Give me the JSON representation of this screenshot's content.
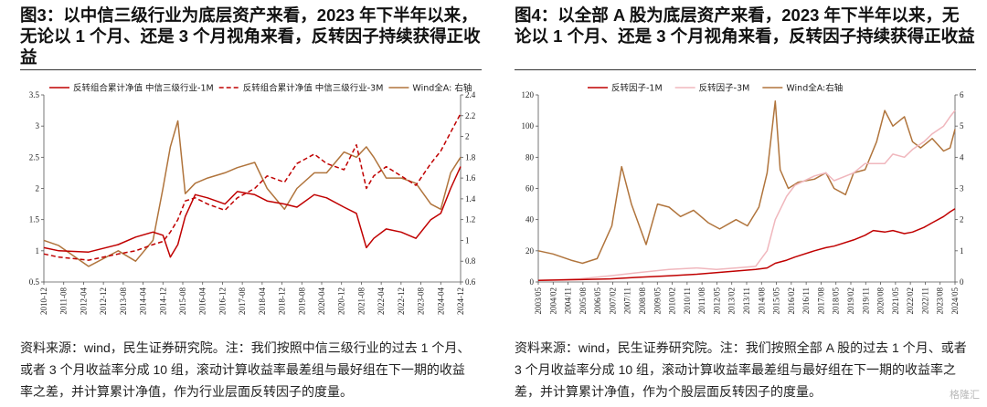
{
  "watermark": "格隆汇",
  "colors": {
    "series_1m": "#c00000",
    "series_3m": "#c00000",
    "series_3m_light": "#f0b7bd",
    "wind": "#b0743c"
  },
  "panels": [
    {
      "title": "图3：以中信三级行业为底层资产来看，2023 年下半年以来，无论以 1 个月、还是 3 个月视角来看，反转因子持续获得正收益",
      "source": "资料来源：wind，民生证券研究院。注：我们按照中信三级行业的过去 1 个月、或者 3 个月收益率分成 10 组，滚动计算收益率最差组与最好组在下一期的收益率之差，并计算累计净值，作为行业层面反转因子的度量。"
    },
    {
      "title": "图4：以全部 A 股为底层资产来看，2023 年下半年以来，无论以 1 个月、还是 3 个月视角来看，反转因子持续获得正收益",
      "source": "资料来源：wind，民生证券研究院。注：我们按照全部 A 股的过去 1 个月、或者 3 个月收益率分成 10 组，滚动计算收益率最差组与最好组在下一期的收益率之差，并计算累计净值，作为个股层面反转因子的度量。"
    }
  ],
  "chart_data": [
    {
      "type": "line",
      "legend_position": "top",
      "grid": false,
      "x_start": "2010-12",
      "x_end": "2024-12",
      "x_ticks": [
        "2010-12",
        "2011-08",
        "2012-04",
        "2012-12",
        "2013-08",
        "2014-04",
        "2014-12",
        "2015-08",
        "2016-04",
        "2016-12",
        "2017-08",
        "2018-04",
        "2018-12",
        "2019-08",
        "2020-04",
        "2020-12",
        "2021-08",
        "2022-04",
        "2022-12",
        "2023-08",
        "2024-04",
        "2024-12"
      ],
      "y_left": {
        "range": [
          0.5,
          3.5
        ],
        "ticks": [
          "0.5",
          "1",
          "1.5",
          "2",
          "2.5",
          "3",
          "3.5"
        ]
      },
      "y_right": {
        "range": [
          0.6,
          2.4
        ],
        "ticks": [
          "0.6",
          "0.8",
          "1",
          "1.2",
          "1.4",
          "1.6",
          "1.8",
          "2",
          "2.2",
          "2.4"
        ]
      },
      "series": [
        {
          "name": "反转组合累计净值 中信三级行业-1M",
          "axis": "left",
          "style": "solid",
          "color": "#c00000",
          "x": [
            "2010-12",
            "2011-06",
            "2012-06",
            "2013-06",
            "2014-01",
            "2014-08",
            "2014-12",
            "2015-03",
            "2015-06",
            "2015-09",
            "2016-01",
            "2016-06",
            "2017-01",
            "2017-06",
            "2018-01",
            "2018-06",
            "2019-01",
            "2019-06",
            "2020-01",
            "2020-06",
            "2021-01",
            "2021-06",
            "2021-10",
            "2022-01",
            "2022-06",
            "2022-12",
            "2023-06",
            "2023-12",
            "2024-04",
            "2024-08",
            "2024-12"
          ],
          "values": [
            1.05,
            1.0,
            0.98,
            1.1,
            1.22,
            1.3,
            1.25,
            0.9,
            1.1,
            1.55,
            1.9,
            1.85,
            1.75,
            1.95,
            1.9,
            1.8,
            1.75,
            1.7,
            1.9,
            1.85,
            1.7,
            1.6,
            1.05,
            1.2,
            1.35,
            1.3,
            1.2,
            1.5,
            1.6,
            2.0,
            2.35
          ]
        },
        {
          "name": "反转组合累计净值 中信三级行业-3M",
          "axis": "left",
          "style": "dashed",
          "color": "#c00000",
          "x": [
            "2010-12",
            "2011-06",
            "2012-06",
            "2013-06",
            "2014-01",
            "2014-08",
            "2014-12",
            "2015-03",
            "2015-06",
            "2015-09",
            "2016-01",
            "2016-06",
            "2017-01",
            "2017-06",
            "2018-01",
            "2018-06",
            "2019-01",
            "2019-06",
            "2020-01",
            "2020-06",
            "2021-01",
            "2021-06",
            "2021-10",
            "2022-01",
            "2022-06",
            "2022-12",
            "2023-06",
            "2023-12",
            "2024-04",
            "2024-08",
            "2024-12"
          ],
          "values": [
            0.95,
            0.9,
            0.85,
            0.95,
            1.0,
            1.1,
            1.15,
            1.3,
            1.5,
            1.8,
            1.85,
            1.75,
            1.65,
            1.85,
            2.0,
            2.2,
            2.1,
            2.4,
            2.55,
            2.4,
            2.3,
            2.7,
            2.0,
            2.2,
            2.35,
            2.2,
            2.05,
            2.4,
            2.6,
            2.9,
            3.2
          ]
        },
        {
          "name": "Wind全A: 右轴",
          "axis": "right",
          "style": "solid",
          "color": "#b0743c",
          "x": [
            "2010-12",
            "2011-06",
            "2012-06",
            "2013-06",
            "2014-01",
            "2014-08",
            "2014-12",
            "2015-03",
            "2015-06",
            "2015-09",
            "2016-01",
            "2016-06",
            "2017-01",
            "2017-06",
            "2018-01",
            "2018-06",
            "2019-01",
            "2019-06",
            "2020-01",
            "2020-06",
            "2021-01",
            "2021-06",
            "2021-10",
            "2022-01",
            "2022-06",
            "2022-12",
            "2023-06",
            "2023-12",
            "2024-04",
            "2024-08",
            "2024-12"
          ],
          "values": [
            1.0,
            0.95,
            0.75,
            0.9,
            0.8,
            1.0,
            1.5,
            1.9,
            2.15,
            1.45,
            1.55,
            1.6,
            1.65,
            1.7,
            1.75,
            1.5,
            1.3,
            1.5,
            1.65,
            1.65,
            1.85,
            1.8,
            1.9,
            1.8,
            1.6,
            1.6,
            1.55,
            1.35,
            1.3,
            1.65,
            1.8
          ]
        }
      ]
    },
    {
      "type": "line",
      "legend_position": "top",
      "grid": false,
      "x_start": "2003-05",
      "x_end": "2024-08",
      "x_ticks": [
        "2003/05",
        "2004/02",
        "2004/11",
        "2005/08",
        "2006/05",
        "2007/02",
        "2007/11",
        "2008/08",
        "2009/05",
        "2010/02",
        "2010/11",
        "2011/08",
        "2012/05",
        "2013/02",
        "2013/11",
        "2014/08",
        "2015/05",
        "2016/02",
        "2016/11",
        "2017/08",
        "2018/05",
        "2019/02",
        "2019/11",
        "2020/08",
        "2021/05",
        "2022/02",
        "2022/11",
        "2023/08",
        "2024/05"
      ],
      "y_left": {
        "range": [
          0,
          120
        ],
        "ticks": [
          "0",
          "20",
          "40",
          "60",
          "80",
          "100",
          "120"
        ]
      },
      "y_right": {
        "range": [
          0,
          6
        ],
        "ticks": [
          "0",
          "1",
          "2",
          "3",
          "4",
          "5",
          "6"
        ]
      },
      "series": [
        {
          "name": "反转因子-1M",
          "axis": "left",
          "style": "solid",
          "color": "#c00000",
          "x": [
            "2003-05",
            "2005-06",
            "2007-01",
            "2008-06",
            "2010-01",
            "2011-06",
            "2012-06",
            "2013-06",
            "2014-06",
            "2015-01",
            "2015-06",
            "2016-01",
            "2016-06",
            "2017-06",
            "2018-01",
            "2018-06",
            "2019-06",
            "2020-01",
            "2020-06",
            "2021-01",
            "2021-06",
            "2022-01",
            "2022-06",
            "2023-01",
            "2023-06",
            "2024-01",
            "2024-05",
            "2024-08"
          ],
          "values": [
            1,
            1.5,
            2,
            3,
            4,
            5,
            6,
            7,
            8,
            9,
            12,
            14,
            16,
            20,
            22,
            23,
            27,
            30,
            33,
            32,
            33,
            31,
            32,
            35,
            38,
            42,
            45,
            47
          ]
        },
        {
          "name": "反转因子-3M",
          "axis": "left",
          "style": "solid",
          "color": "#f0b7bd",
          "x": [
            "2003-05",
            "2005-06",
            "2007-01",
            "2008-06",
            "2010-01",
            "2011-06",
            "2012-06",
            "2013-06",
            "2014-06",
            "2015-01",
            "2015-06",
            "2016-01",
            "2016-06",
            "2017-06",
            "2018-01",
            "2018-06",
            "2019-06",
            "2020-01",
            "2020-06",
            "2021-01",
            "2021-06",
            "2022-01",
            "2022-06",
            "2023-01",
            "2023-06",
            "2024-01",
            "2024-05",
            "2024-08"
          ],
          "values": [
            1,
            2,
            4,
            6,
            8,
            9,
            8,
            9,
            10,
            20,
            40,
            55,
            62,
            68,
            70,
            65,
            70,
            76,
            76,
            76,
            82,
            80,
            85,
            90,
            95,
            100,
            106,
            110
          ]
        },
        {
          "name": "Wind全A:右轴",
          "axis": "right",
          "style": "solid",
          "color": "#b0743c",
          "x": [
            "2003-05",
            "2004-02",
            "2005-01",
            "2005-08",
            "2006-05",
            "2007-02",
            "2007-08",
            "2008-02",
            "2008-11",
            "2009-06",
            "2010-01",
            "2010-08",
            "2011-04",
            "2012-01",
            "2012-08",
            "2013-06",
            "2014-01",
            "2014-08",
            "2015-01",
            "2015-06",
            "2015-09",
            "2016-02",
            "2016-08",
            "2017-06",
            "2018-01",
            "2018-06",
            "2019-01",
            "2019-06",
            "2020-01",
            "2020-08",
            "2021-01",
            "2021-06",
            "2022-01",
            "2022-06",
            "2022-11",
            "2023-06",
            "2024-01",
            "2024-05",
            "2024-08"
          ],
          "values": [
            1.0,
            0.9,
            0.7,
            0.6,
            0.75,
            1.8,
            3.7,
            2.5,
            1.2,
            2.5,
            2.4,
            2.1,
            2.3,
            1.9,
            1.7,
            2.0,
            1.8,
            2.4,
            3.5,
            5.8,
            3.6,
            3.0,
            3.2,
            3.3,
            3.5,
            3.0,
            2.8,
            3.5,
            3.6,
            4.5,
            5.5,
            5.0,
            5.3,
            4.5,
            4.3,
            4.6,
            4.2,
            4.3,
            4.9
          ]
        }
      ]
    }
  ]
}
